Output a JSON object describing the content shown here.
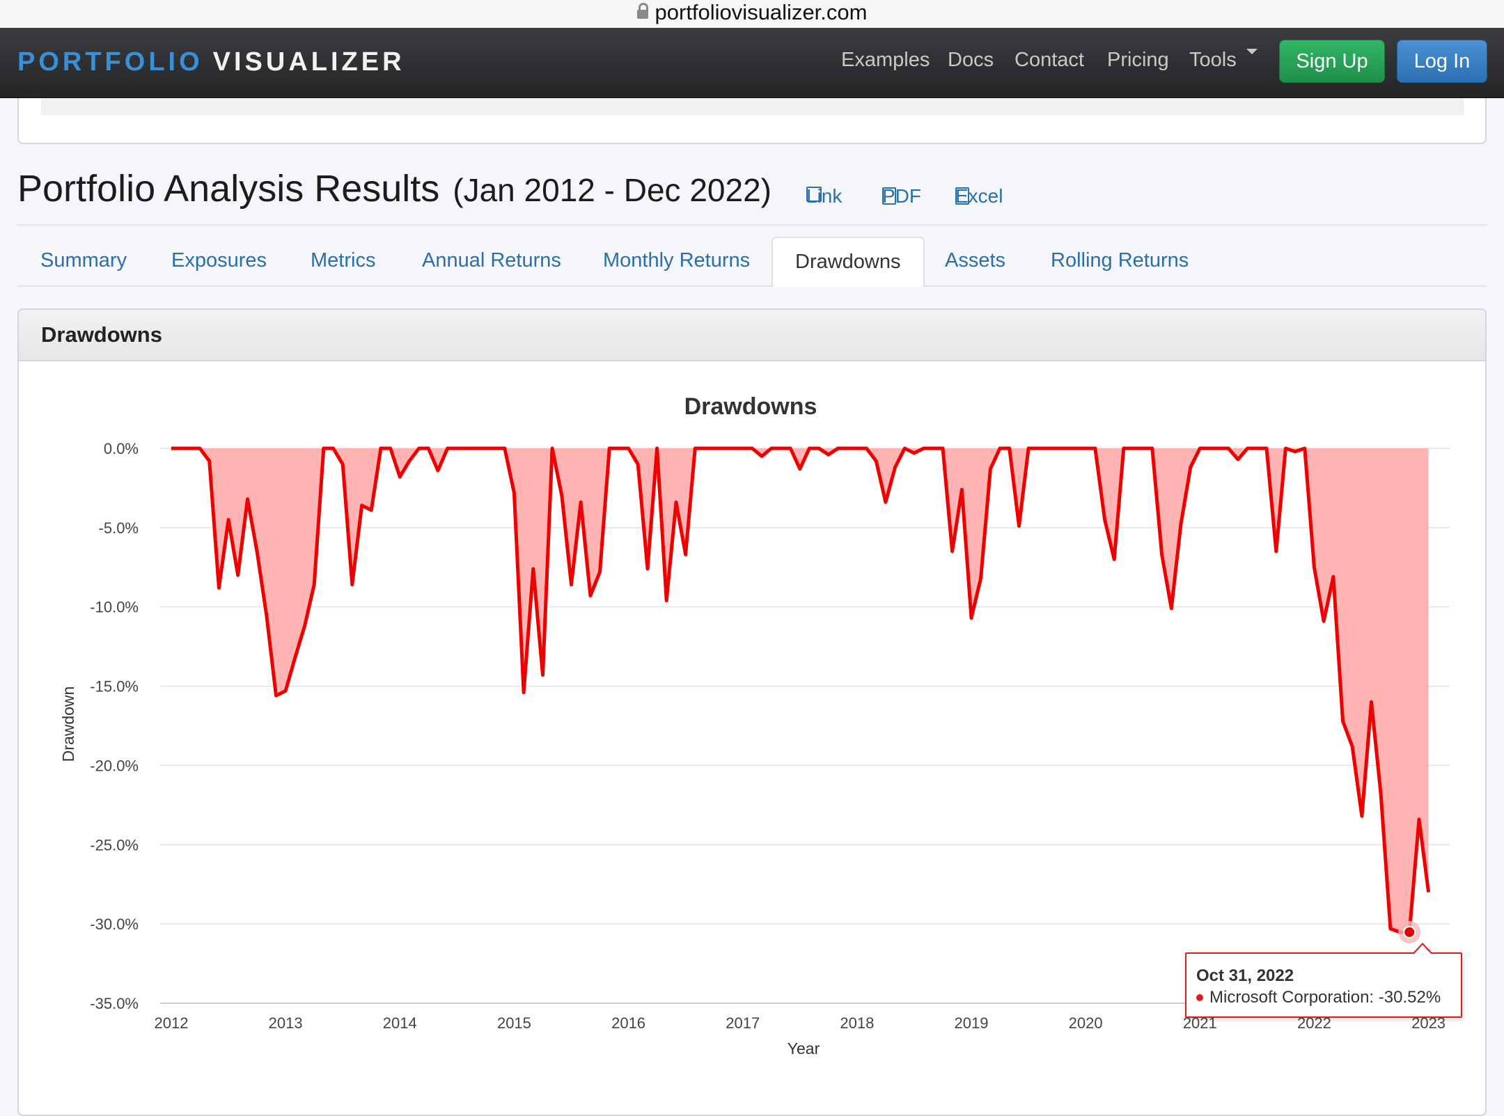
{
  "browser": {
    "url": "portfoliovisualizer.com"
  },
  "navbar": {
    "brand_part1": "PORTFOLIO",
    "brand_part2": "VISUALIZER",
    "links": [
      "Examples",
      "Docs",
      "Contact",
      "Pricing",
      "Tools"
    ],
    "signup_label": "Sign Up",
    "login_label": "Log In"
  },
  "page": {
    "title": "Portfolio Analysis Results",
    "date_range": "(Jan 2012 - Dec 2022)",
    "link_label": "Link",
    "pdf_label": "PDF",
    "excel_label": "Excel"
  },
  "tabs": [
    "Summary",
    "Exposures",
    "Metrics",
    "Annual Returns",
    "Monthly Returns",
    "Drawdowns",
    "Assets",
    "Rolling Returns"
  ],
  "active_tab": "Drawdowns",
  "panel": {
    "heading": "Drawdowns"
  },
  "colors": {
    "series": "#ee0000",
    "fill": "#ffb3b3",
    "accent_blue": "#2a6faa",
    "signup_green": "#28a55a",
    "login_blue": "#3a80c4"
  },
  "tooltip": {
    "date": "Oct 31, 2022",
    "series": "Microsoft Corporation",
    "value": "-30.52%"
  },
  "chart_data": {
    "type": "area",
    "title": "Drawdowns",
    "xlabel": "Year",
    "ylabel": "Drawdown",
    "ylim": [
      -35,
      0
    ],
    "xlim": [
      2012,
      2023.1
    ],
    "yticks": [
      "0.0%",
      "-5.0%",
      "-10.0%",
      "-15.0%",
      "-20.0%",
      "-25.0%",
      "-30.0%",
      "-35.0%"
    ],
    "xticks": [
      "2012",
      "2013",
      "2014",
      "2015",
      "2016",
      "2017",
      "2018",
      "2019",
      "2020",
      "2021",
      "2022",
      "2023"
    ],
    "grid": true,
    "highlight": {
      "x": 2022.833,
      "y": -30.52
    },
    "series": [
      {
        "values": [
          [
            2012.0,
            0
          ],
          [
            2012.083,
            0
          ],
          [
            2012.167,
            0
          ],
          [
            2012.25,
            0
          ],
          [
            2012.333,
            -0.8
          ],
          [
            2012.417,
            -8.8
          ],
          [
            2012.5,
            -4.5
          ],
          [
            2012.583,
            -8.0
          ],
          [
            2012.667,
            -3.2
          ],
          [
            2012.75,
            -6.5
          ],
          [
            2012.833,
            -10.5
          ],
          [
            2012.917,
            -15.6
          ],
          [
            2013.0,
            -15.3
          ],
          [
            2013.083,
            -13.2
          ],
          [
            2013.167,
            -11.2
          ],
          [
            2013.25,
            -8.6
          ],
          [
            2013.333,
            0
          ],
          [
            2013.417,
            0
          ],
          [
            2013.5,
            -1.0
          ],
          [
            2013.583,
            -8.6
          ],
          [
            2013.667,
            -3.6
          ],
          [
            2013.75,
            -3.9
          ],
          [
            2013.833,
            0
          ],
          [
            2013.917,
            0
          ],
          [
            2014.0,
            -1.8
          ],
          [
            2014.083,
            -0.8
          ],
          [
            2014.167,
            0
          ],
          [
            2014.25,
            0
          ],
          [
            2014.333,
            -1.4
          ],
          [
            2014.417,
            0
          ],
          [
            2014.5,
            0
          ],
          [
            2014.583,
            0
          ],
          [
            2014.667,
            0
          ],
          [
            2014.75,
            0
          ],
          [
            2014.833,
            0
          ],
          [
            2014.917,
            0
          ],
          [
            2015.0,
            -2.8
          ],
          [
            2015.083,
            -15.4
          ],
          [
            2015.167,
            -7.6
          ],
          [
            2015.25,
            -14.3
          ],
          [
            2015.333,
            0
          ],
          [
            2015.417,
            -3.0
          ],
          [
            2015.5,
            -8.6
          ],
          [
            2015.583,
            -3.4
          ],
          [
            2015.667,
            -9.3
          ],
          [
            2015.75,
            -7.8
          ],
          [
            2015.833,
            0
          ],
          [
            2015.917,
            0
          ],
          [
            2016.0,
            0
          ],
          [
            2016.083,
            -1.0
          ],
          [
            2016.167,
            -7.6
          ],
          [
            2016.25,
            0
          ],
          [
            2016.333,
            -9.6
          ],
          [
            2016.417,
            -3.4
          ],
          [
            2016.5,
            -6.7
          ],
          [
            2016.583,
            0
          ],
          [
            2016.667,
            0
          ],
          [
            2016.75,
            0
          ],
          [
            2016.833,
            0
          ],
          [
            2016.917,
            0
          ],
          [
            2017.0,
            0
          ],
          [
            2017.083,
            0
          ],
          [
            2017.167,
            -0.5
          ],
          [
            2017.25,
            0
          ],
          [
            2017.333,
            0
          ],
          [
            2017.417,
            0
          ],
          [
            2017.5,
            -1.3
          ],
          [
            2017.583,
            0
          ],
          [
            2017.667,
            0
          ],
          [
            2017.75,
            -0.4
          ],
          [
            2017.833,
            0
          ],
          [
            2017.917,
            0
          ],
          [
            2018.0,
            0
          ],
          [
            2018.083,
            0
          ],
          [
            2018.167,
            -0.8
          ],
          [
            2018.25,
            -3.4
          ],
          [
            2018.333,
            -1.2
          ],
          [
            2018.417,
            0
          ],
          [
            2018.5,
            -0.3
          ],
          [
            2018.583,
            0
          ],
          [
            2018.667,
            0
          ],
          [
            2018.75,
            0
          ],
          [
            2018.833,
            -6.5
          ],
          [
            2018.917,
            -2.6
          ],
          [
            2019.0,
            -10.7
          ],
          [
            2019.083,
            -8.2
          ],
          [
            2019.167,
            -1.3
          ],
          [
            2019.25,
            0
          ],
          [
            2019.333,
            0
          ],
          [
            2019.417,
            -4.9
          ],
          [
            2019.5,
            0
          ],
          [
            2019.583,
            0
          ],
          [
            2019.667,
            0
          ],
          [
            2019.75,
            0
          ],
          [
            2019.833,
            0
          ],
          [
            2019.917,
            0
          ],
          [
            2020.0,
            0
          ],
          [
            2020.083,
            0
          ],
          [
            2020.167,
            -4.5
          ],
          [
            2020.25,
            -7.0
          ],
          [
            2020.333,
            0
          ],
          [
            2020.417,
            0
          ],
          [
            2020.5,
            0
          ],
          [
            2020.583,
            0
          ],
          [
            2020.667,
            -6.7
          ],
          [
            2020.75,
            -10.1
          ],
          [
            2020.833,
            -4.8
          ],
          [
            2020.917,
            -1.2
          ],
          [
            2021.0,
            0
          ],
          [
            2021.083,
            0
          ],
          [
            2021.167,
            0
          ],
          [
            2021.25,
            0
          ],
          [
            2021.333,
            -0.7
          ],
          [
            2021.417,
            0
          ],
          [
            2021.5,
            0
          ],
          [
            2021.583,
            0
          ],
          [
            2021.667,
            -6.5
          ],
          [
            2021.75,
            0
          ],
          [
            2021.833,
            -0.2
          ],
          [
            2021.917,
            0
          ],
          [
            2022.0,
            -7.5
          ],
          [
            2022.083,
            -10.9
          ],
          [
            2022.167,
            -8.1
          ],
          [
            2022.25,
            -17.2
          ],
          [
            2022.333,
            -18.8
          ],
          [
            2022.417,
            -23.2
          ],
          [
            2022.5,
            -16.0
          ],
          [
            2022.583,
            -21.8
          ],
          [
            2022.667,
            -30.3
          ],
          [
            2022.75,
            -30.52
          ],
          [
            2022.833,
            -30.52
          ],
          [
            2022.917,
            -23.4
          ],
          [
            2023.0,
            -28.0
          ]
        ]
      }
    ]
  }
}
